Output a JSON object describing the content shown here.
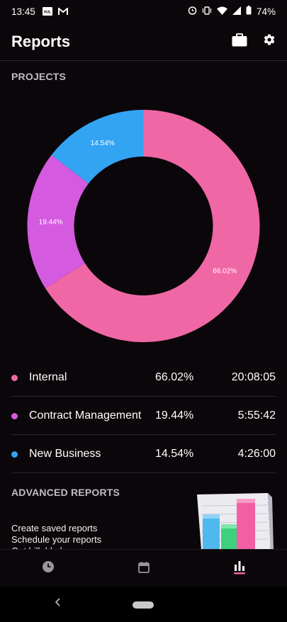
{
  "status_bar": {
    "time": "13:45",
    "battery": "74%",
    "icons": [
      "hul-icon",
      "gmail-icon",
      "alarm-icon",
      "vibrate-icon",
      "wifi-icon",
      "signal-icon",
      "battery-icon"
    ]
  },
  "header": {
    "title": "Reports",
    "actions": [
      "briefcase-icon",
      "gear-icon"
    ]
  },
  "projects": {
    "label": "PROJECTS",
    "items": [
      {
        "name": "Internal",
        "percent": "66.02%",
        "duration": "20:08:05",
        "color": "#f067a6",
        "value": 66.02
      },
      {
        "name": "Contract Management",
        "percent": "19.44%",
        "duration": "5:55:42",
        "color": "#d45ae0",
        "value": 19.44
      },
      {
        "name": "New Business",
        "percent": "14.54%",
        "duration": "4:26:00",
        "color": "#33a4f2",
        "value": 14.54
      }
    ]
  },
  "advanced": {
    "label": "ADVANCED REPORTS",
    "lines": [
      "Create saved reports",
      "Schedule your reports",
      "Get billable hours"
    ]
  },
  "bottom_nav": [
    {
      "icon": "clock-icon",
      "active": false
    },
    {
      "icon": "calendar-icon",
      "active": false
    },
    {
      "icon": "reports-icon",
      "active": true,
      "color": "#f067a6"
    }
  ],
  "chart_data": {
    "type": "pie",
    "categories": [
      "Internal",
      "Contract Management",
      "New Business"
    ],
    "values": [
      66.02,
      19.44,
      14.54
    ],
    "colors": [
      "#f067a6",
      "#d45ae0",
      "#33a4f2"
    ],
    "donut": true
  }
}
